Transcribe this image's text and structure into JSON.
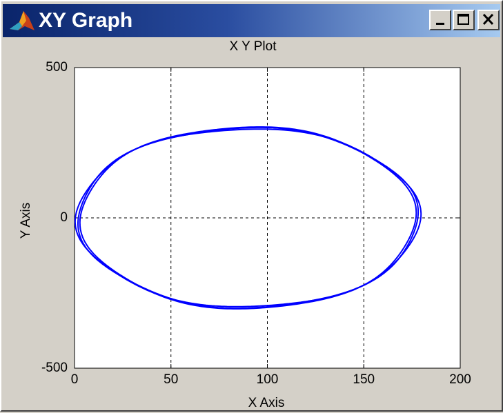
{
  "window": {
    "title": "XY Graph",
    "icon": "matlab-simulink-icon",
    "controls": [
      "minimize-icon",
      "maximize-icon",
      "close-icon"
    ]
  },
  "chart_data": {
    "type": "line",
    "title": "X Y Plot",
    "xlabel": "X Axis",
    "ylabel": "Y Axis",
    "xlim": [
      0,
      200
    ],
    "ylim": [
      -500,
      500
    ],
    "xticks": [
      "0",
      "50",
      "100",
      "150",
      "200"
    ],
    "yticks": [
      "500",
      "0",
      "-500"
    ],
    "grid": true,
    "line_color": "#0000ff",
    "series": [
      {
        "curve": "closed ellipse",
        "center": [
          90,
          0
        ],
        "x_range": [
          2,
          178
        ],
        "y_range": [
          -300,
          300
        ],
        "points": [
          [
            178,
            0
          ],
          [
            175,
            75
          ],
          [
            166,
            140
          ],
          [
            152,
            200
          ],
          [
            134,
            245
          ],
          [
            113,
            283
          ],
          [
            90,
            300
          ],
          [
            67,
            283
          ],
          [
            46,
            245
          ],
          [
            28,
            200
          ],
          [
            14,
            140
          ],
          [
            5,
            75
          ],
          [
            2,
            0
          ],
          [
            5,
            -75
          ],
          [
            14,
            -140
          ],
          [
            28,
            -200
          ],
          [
            46,
            -245
          ],
          [
            67,
            -283
          ],
          [
            90,
            -300
          ],
          [
            113,
            -283
          ],
          [
            134,
            -245
          ],
          [
            152,
            -200
          ],
          [
            166,
            -140
          ],
          [
            175,
            -75
          ],
          [
            178,
            0
          ]
        ]
      }
    ]
  }
}
